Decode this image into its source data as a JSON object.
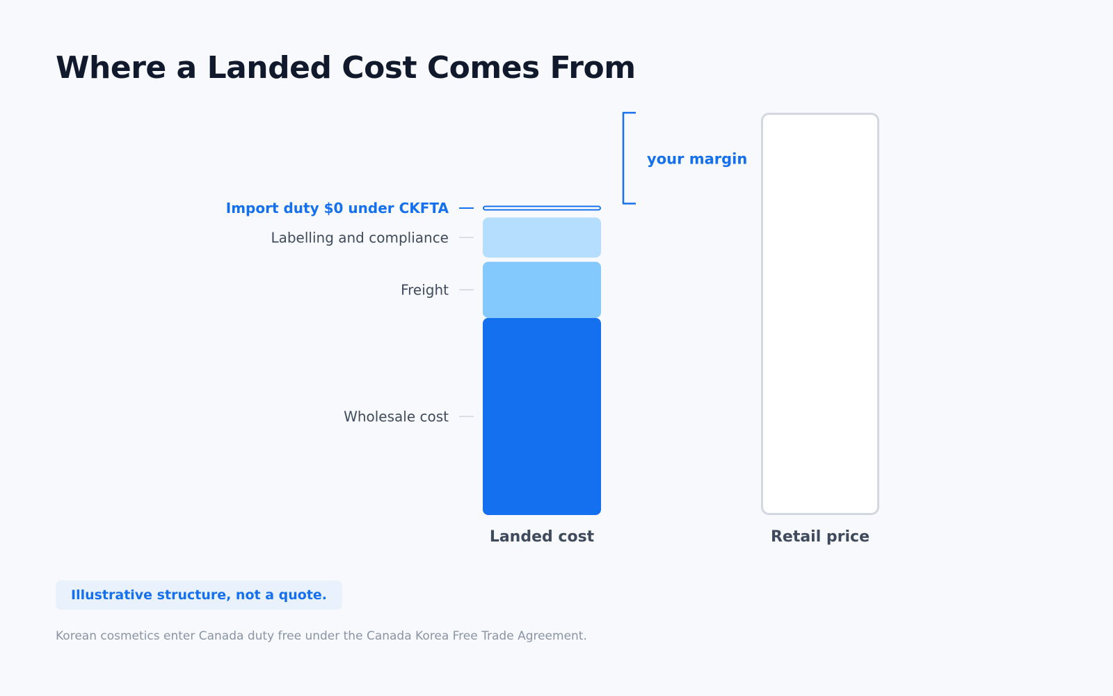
{
  "title": "Where a Landed Cost Comes From",
  "note": "Illustrative structure, not a quote.",
  "footnote": "Korean cosmetics enter Canada duty free under the Canada Korea Free Trade Agreement.",
  "colors": {
    "wholesale": "#1570ef",
    "freight": "#84c9fd",
    "labelling": "#b5defe",
    "duty_outline": "#1570ef",
    "retail_outline": "#d2d7e0",
    "accent": "#1570ef"
  },
  "chart_data": {
    "type": "bar",
    "stacked": true,
    "grid": false,
    "categories": [
      "Landed cost",
      "Retail price"
    ],
    "series": [
      {
        "name": "Wholesale cost",
        "values": [
          49,
          0
        ]
      },
      {
        "name": "Freight",
        "values": [
          15,
          0
        ]
      },
      {
        "name": "Labelling and compliance",
        "values": [
          11,
          0
        ]
      },
      {
        "name": "Import duty $0 under CKFTA",
        "values": [
          0,
          0
        ]
      }
    ],
    "retail_total": 100,
    "margin_label": "your margin"
  }
}
